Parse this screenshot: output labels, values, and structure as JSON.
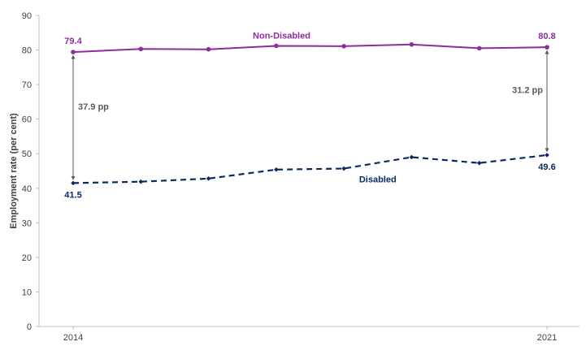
{
  "chart_data": {
    "type": "line",
    "title": "",
    "ylabel": "Employment rate (per cent)",
    "xlabel": "",
    "ylim": [
      0,
      90
    ],
    "yticks": [
      0,
      10,
      20,
      30,
      40,
      50,
      60,
      70,
      80,
      90
    ],
    "x": [
      2014,
      2015,
      2016,
      2017,
      2018,
      2019,
      2020,
      2021
    ],
    "x_tick_labels": [
      "2014",
      "2021"
    ],
    "grid": false,
    "legend": "none",
    "series": [
      {
        "name": "Non-Disabled",
        "color": "#8e2c9f",
        "style": "solid",
        "values": [
          79.4,
          80.3,
          80.2,
          81.2,
          81.1,
          81.6,
          80.5,
          80.8
        ]
      },
      {
        "name": "Disabled",
        "color": "#0b2a63",
        "style": "dashed",
        "values": [
          41.5,
          41.9,
          42.8,
          45.4,
          45.7,
          49.0,
          47.3,
          49.6
        ]
      }
    ],
    "data_labels": [
      {
        "series": 0,
        "index": 0,
        "text": "79.4"
      },
      {
        "series": 0,
        "index": 7,
        "text": "80.8"
      },
      {
        "series": 1,
        "index": 0,
        "text": "41.5"
      },
      {
        "series": 1,
        "index": 7,
        "text": "49.6"
      }
    ],
    "annotations": [
      {
        "index": 0,
        "text": "37.9 pp"
      },
      {
        "index": 7,
        "text": "31.2 pp"
      }
    ],
    "annotation_color": "#595959"
  }
}
